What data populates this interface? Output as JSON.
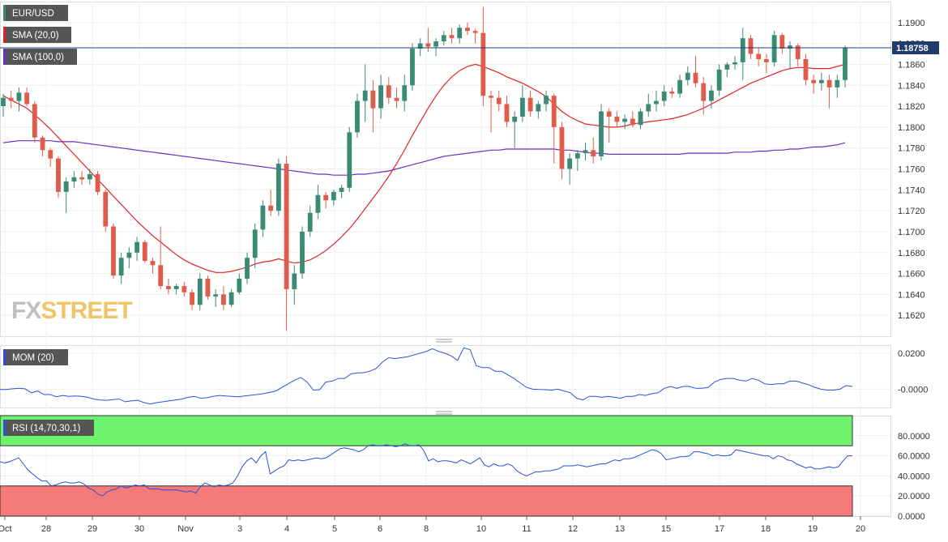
{
  "symbol": "EUR/USD",
  "colors": {
    "bull": "#3a8a75",
    "bear": "#e05c4a",
    "sma20": "#e02424",
    "sma100": "#6a2fbf",
    "mom": "#2a52d8",
    "rsi": "#2a52d8",
    "rsi_overbought_zone": "#6df36d",
    "rsi_oversold_zone": "#f57a7a",
    "label_bg": "#555555",
    "current_price_bg": "#1f3b6e"
  },
  "watermark": {
    "part1": "FX",
    "part2": "STREET"
  },
  "chart_data": [
    {
      "type": "candlestick",
      "title": "EUR/USD",
      "indicators": [
        "SMA (20,0)",
        "SMA (100,0)"
      ],
      "current_price": "1.18758",
      "current_price_value": 1.18758,
      "ylim": [
        1.16,
        1.192
      ],
      "y_ticks": [
        "1.1900",
        "1.1880",
        "1.1860",
        "1.1840",
        "1.1820",
        "1.1800",
        "1.1780",
        "1.1760",
        "1.1740",
        "1.1720",
        "1.1700",
        "1.1680",
        "1.1660",
        "1.1640",
        "1.1620"
      ],
      "x_labels": [
        "Oct",
        "28",
        "29",
        "30",
        "Nov",
        "3",
        "4",
        "5",
        "6",
        "8",
        "10",
        "11",
        "12",
        "13",
        "15",
        "17",
        "18",
        "19",
        "20"
      ],
      "candles_ohlc": [
        [
          1.182,
          1.1832,
          1.181,
          1.1828
        ],
        [
          1.1828,
          1.1835,
          1.1818,
          1.1825
        ],
        [
          1.1825,
          1.1838,
          1.1815,
          1.1833
        ],
        [
          1.1833,
          1.1838,
          1.182,
          1.1822
        ],
        [
          1.1822,
          1.1825,
          1.1785,
          1.179
        ],
        [
          1.179,
          1.1792,
          1.1772,
          1.1778
        ],
        [
          1.1778,
          1.178,
          1.1762,
          1.177
        ],
        [
          1.177,
          1.1772,
          1.1732,
          1.1738
        ],
        [
          1.1738,
          1.1752,
          1.1718,
          1.1748
        ],
        [
          1.1748,
          1.1758,
          1.1742,
          1.1752
        ],
        [
          1.1752,
          1.1758,
          1.1745,
          1.175
        ],
        [
          1.175,
          1.176,
          1.1745,
          1.1755
        ],
        [
          1.1755,
          1.1758,
          1.1735,
          1.1738
        ],
        [
          1.1738,
          1.174,
          1.17,
          1.1705
        ],
        [
          1.1705,
          1.1708,
          1.1655,
          1.1658
        ],
        [
          1.1658,
          1.168,
          1.165,
          1.1675
        ],
        [
          1.1675,
          1.1685,
          1.1665,
          1.168
        ],
        [
          1.168,
          1.1695,
          1.1672,
          1.169
        ],
        [
          1.169,
          1.1692,
          1.167,
          1.1672
        ],
        [
          1.1672,
          1.1675,
          1.166,
          1.1668
        ],
        [
          1.1668,
          1.1705,
          1.1645,
          1.1648
        ],
        [
          1.1648,
          1.1655,
          1.164,
          1.1645
        ],
        [
          1.1645,
          1.165,
          1.164,
          1.1648
        ],
        [
          1.1648,
          1.1652,
          1.1638,
          1.1642
        ],
        [
          1.1642,
          1.1645,
          1.1625,
          1.163
        ],
        [
          1.163,
          1.166,
          1.1625,
          1.1655
        ],
        [
          1.1655,
          1.1658,
          1.1635,
          1.1638
        ],
        [
          1.1638,
          1.1645,
          1.1628,
          1.164
        ],
        [
          1.164,
          1.1648,
          1.1625,
          1.163
        ],
        [
          1.163,
          1.1645,
          1.1628,
          1.1642
        ],
        [
          1.1642,
          1.166,
          1.164,
          1.1655
        ],
        [
          1.1655,
          1.168,
          1.165,
          1.1675
        ],
        [
          1.1675,
          1.1708,
          1.1665,
          1.1702
        ],
        [
          1.1702,
          1.173,
          1.1695,
          1.1725
        ],
        [
          1.1725,
          1.174,
          1.1715,
          1.172
        ],
        [
          1.172,
          1.177,
          1.1715,
          1.1765
        ],
        [
          1.1765,
          1.1772,
          1.1605,
          1.1645
        ],
        [
          1.1645,
          1.1668,
          1.163,
          1.166
        ],
        [
          1.166,
          1.1705,
          1.1655,
          1.17
        ],
        [
          1.17,
          1.1725,
          1.1695,
          1.1718
        ],
        [
          1.1718,
          1.1745,
          1.1712,
          1.1735
        ],
        [
          1.1735,
          1.1738,
          1.1722,
          1.173
        ],
        [
          1.173,
          1.174,
          1.1725,
          1.1738
        ],
        [
          1.1738,
          1.1745,
          1.1732,
          1.1742
        ],
        [
          1.1742,
          1.18,
          1.1738,
          1.1795
        ],
        [
          1.1795,
          1.1832,
          1.179,
          1.1825
        ],
        [
          1.1825,
          1.186,
          1.1805,
          1.1835
        ],
        [
          1.1835,
          1.1845,
          1.1795,
          1.1818
        ],
        [
          1.1818,
          1.185,
          1.1808,
          1.184
        ],
        [
          1.184,
          1.1848,
          1.1822,
          1.1828
        ],
        [
          1.1828,
          1.1838,
          1.1818,
          1.1825
        ],
        [
          1.1825,
          1.185,
          1.1815,
          1.184
        ],
        [
          1.184,
          1.188,
          1.1835,
          1.1875
        ],
        [
          1.1875,
          1.1885,
          1.1868,
          1.188
        ],
        [
          1.188,
          1.1895,
          1.1872,
          1.1877
        ],
        [
          1.1877,
          1.1885,
          1.1868,
          1.1882
        ],
        [
          1.1882,
          1.1892,
          1.1878,
          1.1888
        ],
        [
          1.1888,
          1.1895,
          1.188,
          1.1885
        ],
        [
          1.1885,
          1.1898,
          1.188,
          1.1895
        ],
        [
          1.1895,
          1.19,
          1.1888,
          1.1892
        ],
        [
          1.1892,
          1.1894,
          1.188,
          1.189
        ],
        [
          1.189,
          1.1915,
          1.182,
          1.183
        ],
        [
          1.183,
          1.1835,
          1.1795,
          1.1828
        ],
        [
          1.1828,
          1.1835,
          1.1815,
          1.1822
        ],
        [
          1.1822,
          1.183,
          1.18,
          1.1805
        ],
        [
          1.1805,
          1.1815,
          1.178,
          1.181
        ],
        [
          1.181,
          1.184,
          1.1805,
          1.1828
        ],
        [
          1.1828,
          1.1835,
          1.181,
          1.1815
        ],
        [
          1.1815,
          1.1825,
          1.1808,
          1.1822
        ],
        [
          1.1822,
          1.1835,
          1.1815,
          1.183
        ],
        [
          1.183,
          1.1832,
          1.1765,
          1.18
        ],
        [
          1.18,
          1.1805,
          1.175,
          1.176
        ],
        [
          1.176,
          1.1775,
          1.1745,
          1.177
        ],
        [
          1.177,
          1.1778,
          1.1758,
          1.1775
        ],
        [
          1.1775,
          1.1785,
          1.1768,
          1.1778
        ],
        [
          1.1778,
          1.179,
          1.1765,
          1.1772
        ],
        [
          1.1772,
          1.1822,
          1.1768,
          1.1815
        ],
        [
          1.1815,
          1.1818,
          1.1785,
          1.181
        ],
        [
          1.181,
          1.1815,
          1.18,
          1.1805
        ],
        [
          1.1805,
          1.1812,
          1.1798,
          1.1808
        ],
        [
          1.1808,
          1.1815,
          1.18,
          1.1802
        ],
        [
          1.1802,
          1.1818,
          1.1798,
          1.1815
        ],
        [
          1.1815,
          1.1832,
          1.181,
          1.1822
        ],
        [
          1.1822,
          1.1835,
          1.1815,
          1.1825
        ],
        [
          1.1825,
          1.184,
          1.182,
          1.1834
        ],
        [
          1.1834,
          1.1838,
          1.1828,
          1.1832
        ],
        [
          1.1832,
          1.185,
          1.1828,
          1.1845
        ],
        [
          1.1845,
          1.1858,
          1.184,
          1.1852
        ],
        [
          1.1852,
          1.1868,
          1.1838,
          1.1842
        ],
        [
          1.1842,
          1.1848,
          1.1812,
          1.1825
        ],
        [
          1.1825,
          1.184,
          1.1818,
          1.1835
        ],
        [
          1.1835,
          1.186,
          1.183,
          1.1855
        ],
        [
          1.1855,
          1.1862,
          1.1848,
          1.186
        ],
        [
          1.186,
          1.1868,
          1.1855,
          1.1862
        ],
        [
          1.1862,
          1.1895,
          1.1845,
          1.1885
        ],
        [
          1.1885,
          1.1888,
          1.1865,
          1.187
        ],
        [
          1.187,
          1.1875,
          1.1858,
          1.1865
        ],
        [
          1.1865,
          1.187,
          1.1852,
          1.1862
        ],
        [
          1.1862,
          1.1892,
          1.1858,
          1.1888
        ],
        [
          1.1888,
          1.189,
          1.187,
          1.1875
        ],
        [
          1.1875,
          1.1882,
          1.1855,
          1.1878
        ],
        [
          1.1878,
          1.188,
          1.1858,
          1.1865
        ],
        [
          1.1865,
          1.187,
          1.184,
          1.1845
        ],
        [
          1.1845,
          1.185,
          1.1832,
          1.1842
        ],
        [
          1.1842,
          1.1852,
          1.1835,
          1.1845
        ],
        [
          1.1845,
          1.185,
          1.1818,
          1.1838
        ],
        [
          1.1838,
          1.185,
          1.1828,
          1.1845
        ],
        [
          1.1845,
          1.1878,
          1.1838,
          1.1876
        ]
      ],
      "sma20": [
        1.183,
        1.1826,
        1.1822,
        1.1818,
        1.1812,
        1.1805,
        1.1798,
        1.179,
        1.1782,
        1.1774,
        1.1766,
        1.1758,
        1.175,
        1.1742,
        1.1734,
        1.1726,
        1.1718,
        1.171,
        1.1703,
        1.1696,
        1.169,
        1.1684,
        1.1678,
        1.1673,
        1.1669,
        1.1666,
        1.1663,
        1.1661,
        1.1661,
        1.1662,
        1.1664,
        1.1666,
        1.1669,
        1.1671,
        1.1672,
        1.1674,
        1.1672,
        1.167,
        1.1671,
        1.1673,
        1.1677,
        1.1682,
        1.1688,
        1.1695,
        1.1703,
        1.1712,
        1.1722,
        1.1732,
        1.1742,
        1.1753,
        1.1765,
        1.1778,
        1.1792,
        1.1805,
        1.1818,
        1.183,
        1.184,
        1.1848,
        1.1854,
        1.1858,
        1.186,
        1.1858,
        1.1855,
        1.1852,
        1.1848,
        1.1845,
        1.1842,
        1.1838,
        1.1834,
        1.1829,
        1.1822,
        1.1815,
        1.181,
        1.1806,
        1.1803,
        1.1802,
        1.1801,
        1.18,
        1.18,
        1.1801,
        1.1803,
        1.1804,
        1.1805,
        1.1806,
        1.1807,
        1.1808,
        1.181,
        1.1812,
        1.1815,
        1.1818,
        1.1822,
        1.1826,
        1.183,
        1.1834,
        1.1838,
        1.1842,
        1.1845,
        1.1848,
        1.1851,
        1.1854,
        1.1856,
        1.1857,
        1.1857,
        1.1856,
        1.1856,
        1.1856,
        1.1858,
        1.186
      ],
      "sma100": [
        1.1785,
        1.1786,
        1.1787,
        1.1787,
        1.1787,
        1.1787,
        1.1787,
        1.1786,
        1.1786,
        1.1786,
        1.1785,
        1.1784,
        1.1783,
        1.1782,
        1.1781,
        1.178,
        1.1779,
        1.1778,
        1.1777,
        1.1776,
        1.1775,
        1.1774,
        1.1773,
        1.1772,
        1.1771,
        1.177,
        1.1769,
        1.1768,
        1.1767,
        1.1766,
        1.1765,
        1.1764,
        1.1763,
        1.1762,
        1.1761,
        1.176,
        1.1759,
        1.1758,
        1.1757,
        1.1756,
        1.1755,
        1.1755,
        1.1754,
        1.1754,
        1.1754,
        1.1755,
        1.1755,
        1.1756,
        1.1757,
        1.1758,
        1.176,
        1.1762,
        1.1764,
        1.1766,
        1.1768,
        1.177,
        1.1772,
        1.1773,
        1.1774,
        1.1775,
        1.1776,
        1.1777,
        1.1778,
        1.1778,
        1.1779,
        1.1779,
        1.1779,
        1.1779,
        1.1779,
        1.1779,
        1.1779,
        1.1778,
        1.1778,
        1.1777,
        1.1776,
        1.1775,
        1.1775,
        1.1774,
        1.1774,
        1.1774,
        1.1774,
        1.1774,
        1.1774,
        1.1774,
        1.1774,
        1.1774,
        1.1774,
        1.1775,
        1.1775,
        1.1775,
        1.1775,
        1.1775,
        1.1775,
        1.1776,
        1.1776,
        1.1776,
        1.1777,
        1.1777,
        1.1778,
        1.1778,
        1.1779,
        1.1779,
        1.178,
        1.1781,
        1.1781,
        1.1782,
        1.1783,
        1.1785
      ]
    },
    {
      "type": "line",
      "title": "MOM (20)",
      "ylim": [
        -0.0102,
        0.0245
      ],
      "y_ticks": [
        0.02,
        0.0
      ],
      "y_tick_labels": [
        "0.0200",
        "-0.0000"
      ],
      "values": [
        -0.0002,
        -0.0002,
        0.0002,
        0.0005,
        0.0002,
        -0.002,
        -0.001,
        -0.003,
        -0.003,
        -0.0042,
        -0.0035,
        -0.004,
        -0.0038,
        -0.004,
        -0.0045,
        -0.0055,
        -0.006,
        -0.0062,
        -0.0058,
        -0.0055,
        -0.007,
        -0.0065,
        -0.0062,
        -0.0075,
        -0.0082,
        -0.0075,
        -0.007,
        -0.0065,
        -0.006,
        -0.0055,
        -0.0045,
        -0.004,
        -0.005,
        -0.0048,
        -0.004,
        -0.0035,
        -0.0038,
        -0.004,
        -0.0042,
        -0.0038,
        -0.0034,
        -0.003,
        -0.0025,
        -0.0018,
        -0.001,
        0.001,
        0.003,
        0.005,
        0.0065,
        0.004,
        -0.0005,
        -0.0003,
        0.004,
        0.0045,
        0.006,
        0.006,
        0.0085,
        0.009,
        0.0092,
        0.01,
        0.0115,
        0.015,
        0.0175,
        0.017,
        0.0175,
        0.018,
        0.019,
        0.02,
        0.021,
        0.0225,
        0.021,
        0.02,
        0.0185,
        0.016,
        0.023,
        0.022,
        0.013,
        0.012,
        0.012,
        0.01,
        0.01,
        0.008,
        0.006,
        0.0035,
        0.001,
        0.0,
        -0.0002,
        -0.0003,
        -0.0005,
        0.0,
        -0.001,
        -0.002,
        -0.005,
        -0.006,
        -0.004,
        -0.004,
        -0.0045,
        -0.004,
        -0.0045,
        -0.005,
        -0.004,
        -0.004,
        -0.003,
        -0.0035,
        -0.0025,
        -0.002,
        0.0005,
        0.0015,
        0.0005,
        0.0015,
        0.0015,
        0.0005,
        0.0005,
        0.001,
        0.004,
        0.0055,
        0.006,
        0.006,
        0.005,
        0.0045,
        0.006,
        0.005,
        0.003,
        0.0025,
        0.003,
        0.003,
        0.0045,
        0.0045,
        0.0035,
        0.0025,
        0.001,
        0.0,
        -0.0005,
        -0.0005,
        0.0,
        0.002,
        0.0015
      ]
    },
    {
      "type": "line",
      "title": "RSI (14,70,30,1)",
      "ylim": [
        0,
        100
      ],
      "y_ticks": [
        80,
        60,
        40,
        20,
        0
      ],
      "y_tick_labels": [
        "80.0000",
        "60.0000",
        "40.0000",
        "20.0000",
        "0.0000"
      ],
      "overbought": 70,
      "oversold": 30,
      "values": [
        54,
        53,
        54,
        56,
        58,
        52,
        46,
        42,
        38,
        35,
        35,
        30,
        31,
        33,
        34,
        33,
        33,
        34,
        32,
        28,
        26,
        22,
        20,
        24,
        26,
        27,
        30,
        28,
        29,
        31,
        30,
        31,
        27,
        27,
        27,
        26,
        26,
        26,
        26,
        25,
        24,
        25,
        23,
        29,
        33,
        31,
        29,
        31,
        30,
        31,
        33,
        40,
        49,
        55,
        58,
        53,
        60,
        64,
        42,
        45,
        48,
        50,
        56,
        55,
        56,
        55,
        56,
        57,
        58,
        57,
        58,
        61,
        64,
        67,
        68,
        67,
        66,
        64,
        66,
        70,
        71,
        70,
        70,
        71,
        70,
        69,
        70,
        72,
        70,
        70,
        71,
        65,
        55,
        57,
        54,
        55,
        55,
        54,
        53,
        56,
        54,
        52,
        55,
        58,
        51,
        49,
        52,
        50,
        50,
        52,
        50,
        45,
        42,
        40,
        42,
        44,
        44,
        45,
        45,
        46,
        47,
        50,
        50,
        50,
        51,
        50,
        49,
        50,
        51,
        52,
        52,
        54,
        56,
        55,
        57,
        57,
        58,
        60,
        62,
        64,
        66,
        65,
        62,
        56,
        57,
        58,
        59,
        59,
        60,
        64,
        64,
        63,
        62,
        60,
        61,
        60,
        60,
        61,
        66,
        65,
        64,
        63,
        62,
        61,
        60,
        60,
        57,
        60,
        59,
        56,
        55,
        52,
        50,
        48,
        49,
        47,
        47,
        48,
        49,
        48,
        49,
        55,
        60,
        60
      ]
    }
  ]
}
